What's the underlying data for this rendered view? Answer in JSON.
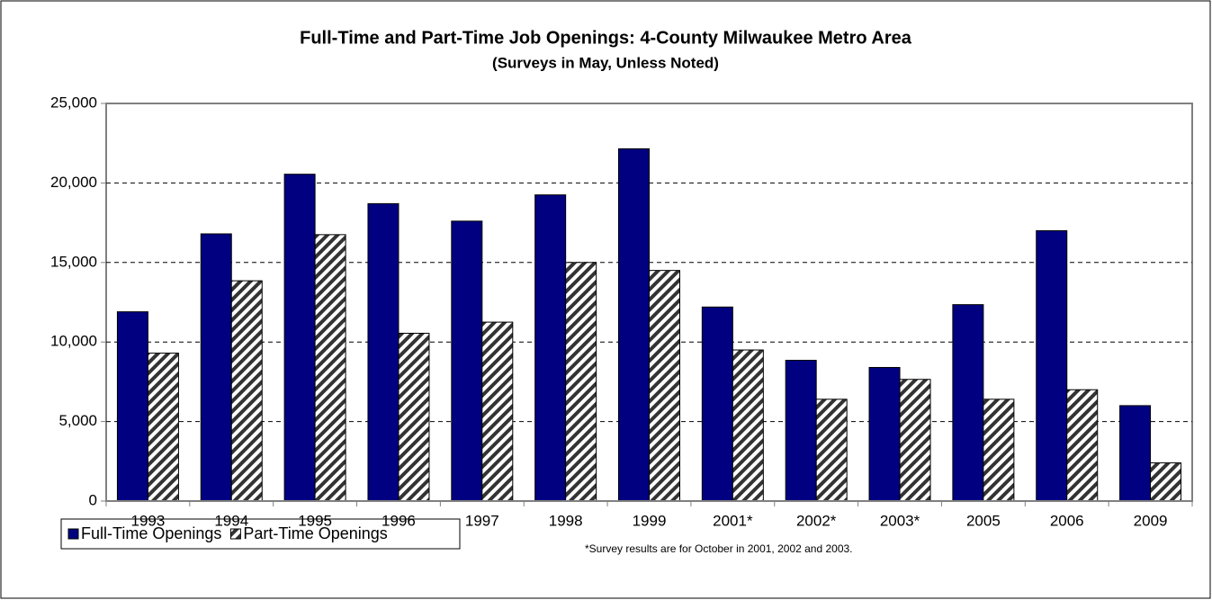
{
  "chart_data": {
    "type": "bar",
    "title": "Full-Time and Part-Time Job Openings: 4-County Milwaukee Metro Area",
    "subtitle": "(Surveys in May, Unless Noted)",
    "categories": [
      "1993",
      "1994",
      "1995",
      "1996",
      "1997",
      "1998",
      "1999",
      "2001*",
      "2002*",
      "2003*",
      "2005",
      "2006",
      "2009"
    ],
    "series": [
      {
        "name": "Full-Time Openings",
        "color": "#000080",
        "values": [
          11900,
          16800,
          20550,
          18700,
          17600,
          19250,
          22150,
          12200,
          8850,
          8400,
          12350,
          17000,
          6000
        ]
      },
      {
        "name": "Part-Time Openings",
        "color": "#333333",
        "pattern": "diagonal-hatch",
        "values": [
          9300,
          13850,
          16750,
          10550,
          11250,
          15000,
          14500,
          9500,
          6400,
          7650,
          6400,
          7000,
          2400
        ]
      }
    ],
    "ylim": [
      0,
      25000
    ],
    "yticks": [
      0,
      {
        "value": 5000,
        "label": "5,000"
      },
      {
        "value": 10000,
        "label": "10,000"
      },
      {
        "value": 15000,
        "label": "15,000"
      },
      {
        "value": 20000,
        "label": "20,000"
      },
      {
        "value": 25000,
        "label": "25,000"
      }
    ],
    "grid": true,
    "legend": "bottom-left",
    "annotations": [
      "*Survey results are for October in 2001, 2002 and 2003."
    ]
  }
}
